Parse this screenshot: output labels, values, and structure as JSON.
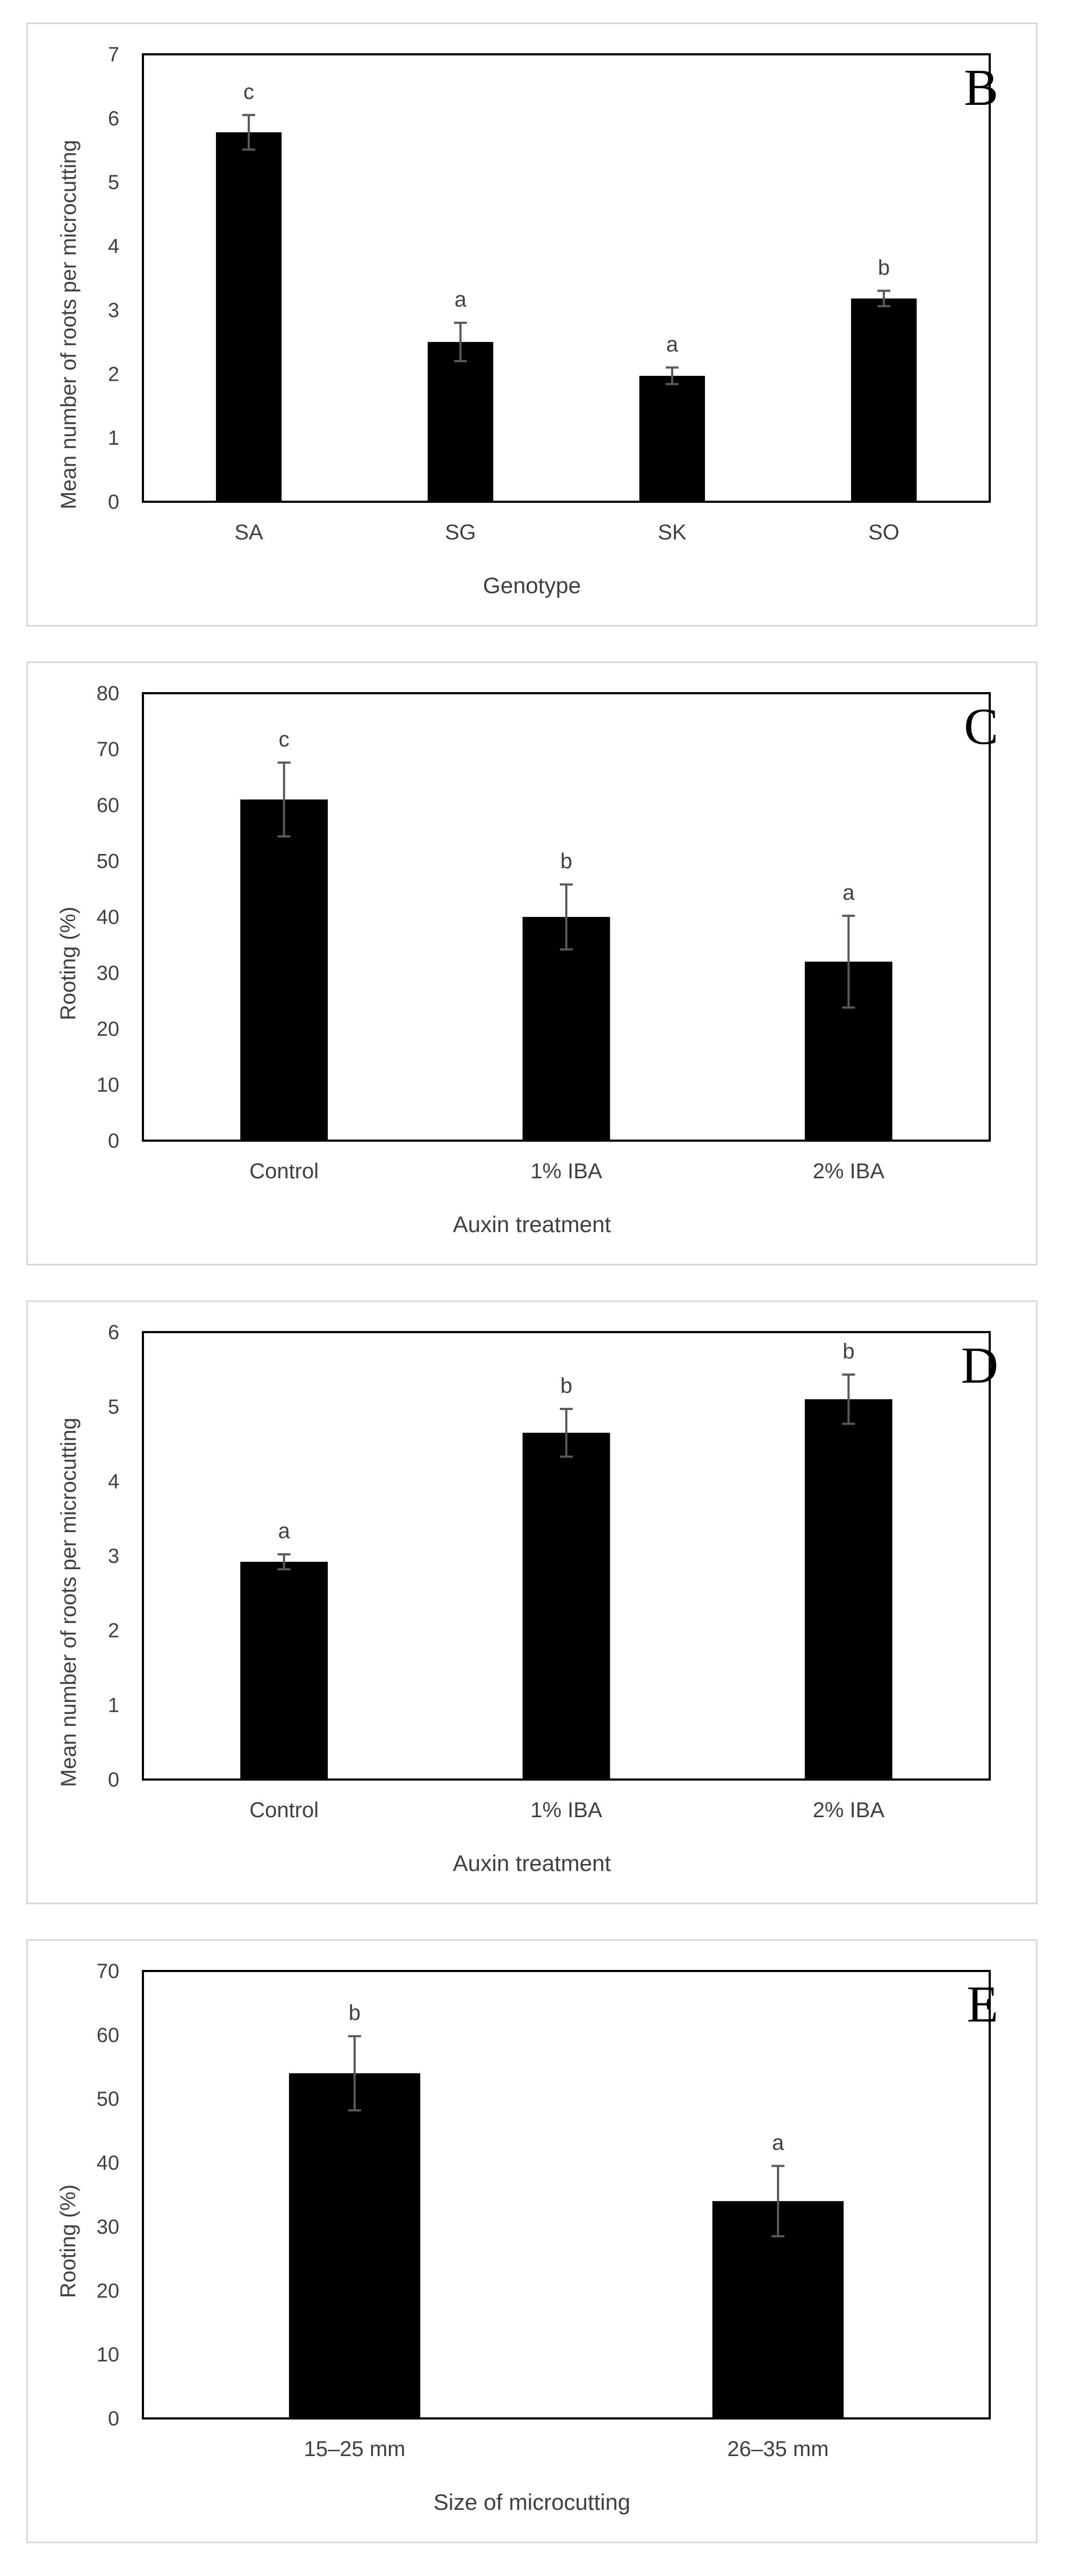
{
  "chart_data": [
    {
      "panel": "B",
      "type": "bar",
      "categories": [
        "SA",
        "SG",
        "SK",
        "SO"
      ],
      "values": [
        5.78,
        2.5,
        1.97,
        3.18
      ],
      "errors": [
        0.27,
        0.3,
        0.13,
        0.12
      ],
      "significance": [
        "c",
        "a",
        "a",
        "b"
      ],
      "xlabel": "Genotype",
      "ylabel": "Mean number of roots per microcutting",
      "ylim": [
        0,
        7
      ],
      "yticks": [
        "0",
        "1",
        "2",
        "3",
        "4",
        "5",
        "6",
        "7"
      ],
      "bar_color": "#000000"
    },
    {
      "panel": "C",
      "type": "bar",
      "categories": [
        "Control",
        "1% IBA",
        "2% IBA"
      ],
      "values": [
        61,
        40,
        32
      ],
      "errors": [
        6.6,
        5.8,
        8.2
      ],
      "significance": [
        "c",
        "b",
        "a"
      ],
      "xlabel": "Auxin treatment",
      "ylabel": "Rooting (%)",
      "ylim": [
        0,
        80
      ],
      "yticks": [
        "0",
        "10",
        "20",
        "30",
        "40",
        "50",
        "60",
        "70",
        "80"
      ],
      "bar_color": "#000000"
    },
    {
      "panel": "D",
      "type": "bar",
      "categories": [
        "Control",
        "1% IBA",
        "2% IBA"
      ],
      "values": [
        2.92,
        4.65,
        5.1
      ],
      "errors": [
        0.1,
        0.32,
        0.33
      ],
      "significance": [
        "a",
        "b",
        "b"
      ],
      "xlabel": "Auxin treatment",
      "ylabel": "Mean number of roots per microcutting",
      "ylim": [
        0,
        6
      ],
      "yticks": [
        "0",
        "1",
        "2",
        "3",
        "4",
        "5",
        "6"
      ],
      "bar_color": "#000000"
    },
    {
      "panel": "E",
      "type": "bar",
      "categories": [
        "15–25 mm",
        "26–35 mm"
      ],
      "values": [
        54,
        34
      ],
      "errors": [
        5.8,
        5.5
      ],
      "significance": [
        "b",
        "a"
      ],
      "xlabel": "Size of microcutting",
      "ylabel": "Rooting (%)",
      "ylim": [
        0,
        70
      ],
      "yticks": [
        "0",
        "10",
        "20",
        "30",
        "40",
        "50",
        "60",
        "70"
      ],
      "bar_color": "#000000"
    }
  ]
}
